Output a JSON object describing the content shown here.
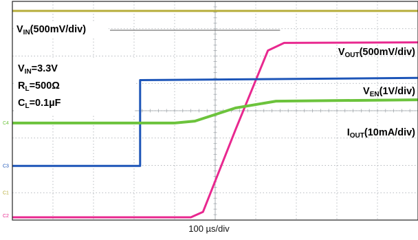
{
  "colors": {
    "vin": "#b6ad3a",
    "vout": "#e8288f",
    "ven": "#1d55b8",
    "iout": "#6cc33c",
    "grid": "#9aa0a6",
    "frame": "#222222"
  },
  "chart_data": {
    "type": "line",
    "title": "",
    "xlabel": "100 µs/div",
    "ylabel": "",
    "grid": true,
    "x_divisions": 10,
    "y_divisions": 8,
    "xlim": [
      0,
      10
    ],
    "ylim": [
      0,
      8
    ],
    "channel_markers": [
      "C4",
      "C3",
      "C1",
      "C2"
    ],
    "conditions": [
      {
        "main": "V",
        "sub": "IN",
        "rest": "=3.3V"
      },
      {
        "main": "R",
        "sub": "L",
        "rest": "=500Ω"
      },
      {
        "main": "C",
        "sub": "L",
        "rest": "=0.1µF"
      }
    ],
    "series": [
      {
        "name": "VIN(500mV/div)",
        "label": {
          "main": "V",
          "sub": "IN",
          "rest": "(500mV/div)"
        },
        "color_key": "vin",
        "x": [
          0,
          10
        ],
        "y": [
          7.65,
          7.65
        ]
      },
      {
        "name": "VOUT(500mV/div)",
        "label": {
          "main": "V",
          "sub": "OUT",
          "rest": "(500mV/div)"
        },
        "color_key": "vout",
        "x": [
          0,
          4.4,
          4.7,
          5.5,
          6.3,
          6.7,
          10
        ],
        "y": [
          0.1,
          0.1,
          0.3,
          3.3,
          6.2,
          6.48,
          6.5
        ]
      },
      {
        "name": "VEN(1V/div)",
        "label": {
          "main": "V",
          "sub": "EN",
          "rest": "(1V/div)"
        },
        "color_key": "ven",
        "x": [
          0,
          3.15,
          3.15,
          10
        ],
        "y": [
          1.98,
          1.98,
          5.12,
          5.2
        ]
      },
      {
        "name": "IOUT(10mA/div)",
        "label": {
          "main": "I",
          "sub": "OUT",
          "rest": "(10mA/div)"
        },
        "color_key": "iout",
        "x": [
          0,
          4.0,
          4.5,
          5.5,
          6.5,
          10
        ],
        "y": [
          3.55,
          3.55,
          3.62,
          4.1,
          4.35,
          4.4
        ]
      }
    ]
  }
}
